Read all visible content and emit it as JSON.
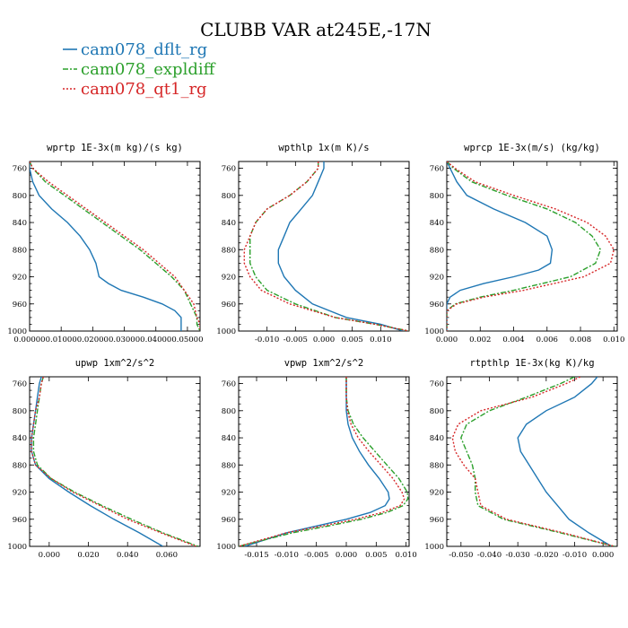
{
  "figure": {
    "title": "CLUBB VAR at245E,-17N"
  },
  "legend": [
    {
      "name": "cam078_dflt_rg",
      "color": "#1f77b4",
      "dash": ""
    },
    {
      "name": "cam078_expldiff",
      "color": "#2ca02c",
      "dash": "6,2,2,2"
    },
    {
      "name": "cam078_qt1_rg",
      "color": "#d62728",
      "dash": "2,2"
    }
  ],
  "chart_data": [
    {
      "type": "line",
      "title": "wprtp  1E-3x(m kg)/(s kg)",
      "xlim": [
        0.0,
        0.054
      ],
      "ylim": [
        750,
        1000
      ],
      "xticks": [
        0.0,
        0.01,
        0.02,
        0.03,
        0.04,
        0.05
      ],
      "xtick_labels": [
        "0.00000",
        "0.01000",
        "0.02000",
        "0.03000",
        "0.04000",
        "0.05000"
      ],
      "yticks": [
        760,
        800,
        840,
        880,
        920,
        960,
        1000
      ],
      "series": [
        {
          "y": [
            750,
            760,
            780,
            800,
            820,
            840,
            860,
            880,
            900,
            920,
            930,
            940,
            950,
            960,
            970,
            980,
            990,
            1000
          ],
          "x": [
            0.0,
            0.0,
            0.001,
            0.003,
            0.007,
            0.012,
            0.016,
            0.019,
            0.021,
            0.022,
            0.025,
            0.029,
            0.036,
            0.042,
            0.046,
            0.048,
            0.048,
            0.048
          ]
        },
        {
          "y": [
            750,
            760,
            780,
            800,
            820,
            840,
            860,
            880,
            900,
            920,
            940,
            960,
            980,
            990,
            1000
          ],
          "x": [
            0.0,
            0.001,
            0.005,
            0.011,
            0.017,
            0.023,
            0.029,
            0.035,
            0.04,
            0.045,
            0.049,
            0.051,
            0.053,
            0.053,
            0.054
          ]
        },
        {
          "y": [
            750,
            760,
            780,
            800,
            820,
            840,
            860,
            880,
            900,
            920,
            940,
            960,
            980,
            990,
            1000
          ],
          "x": [
            0.0,
            0.001,
            0.006,
            0.012,
            0.018,
            0.024,
            0.03,
            0.036,
            0.041,
            0.046,
            0.049,
            0.052,
            0.053,
            0.054,
            0.054
          ]
        }
      ]
    },
    {
      "type": "line",
      "title": "wpthlp  1x(m K)/s",
      "xlim": [
        -0.015,
        0.015
      ],
      "ylim": [
        750,
        1000
      ],
      "xticks": [
        -0.01,
        -0.005,
        0.0,
        0.005,
        0.01
      ],
      "xtick_labels": [
        "-0.010",
        "-0.005",
        "0.000",
        "0.005",
        "0.010"
      ],
      "yticks": [
        760,
        800,
        840,
        880,
        920,
        960,
        1000
      ],
      "series": [
        {
          "y": [
            750,
            760,
            780,
            800,
            820,
            840,
            860,
            880,
            900,
            920,
            940,
            960,
            980,
            990,
            1000
          ],
          "x": [
            0.0,
            0.0,
            -0.001,
            -0.002,
            -0.004,
            -0.006,
            -0.007,
            -0.008,
            -0.008,
            -0.007,
            -0.005,
            -0.002,
            0.004,
            0.01,
            0.014
          ]
        },
        {
          "y": [
            750,
            760,
            780,
            800,
            820,
            840,
            860,
            880,
            900,
            920,
            940,
            960,
            980,
            990,
            1000
          ],
          "x": [
            -0.001,
            -0.001,
            -0.003,
            -0.006,
            -0.01,
            -0.012,
            -0.013,
            -0.013,
            -0.013,
            -0.012,
            -0.01,
            -0.005,
            0.002,
            0.009,
            0.015
          ]
        },
        {
          "y": [
            750,
            760,
            780,
            800,
            820,
            840,
            860,
            880,
            900,
            920,
            940,
            960,
            980,
            990,
            1000
          ],
          "x": [
            -0.001,
            -0.001,
            -0.003,
            -0.006,
            -0.01,
            -0.012,
            -0.013,
            -0.014,
            -0.014,
            -0.013,
            -0.011,
            -0.006,
            0.002,
            0.009,
            0.015
          ]
        }
      ]
    },
    {
      "type": "line",
      "title": "wprcp  1E-3x(m/s) (kg/kg)",
      "xlim": [
        0.0,
        0.0102
      ],
      "ylim": [
        750,
        1000
      ],
      "xticks": [
        0.0,
        0.002,
        0.004,
        0.006,
        0.008,
        0.01
      ],
      "xtick_labels": [
        "0.000",
        "0.002",
        "0.004",
        "0.006",
        "0.008",
        "0.010"
      ],
      "yticks": [
        760,
        800,
        840,
        880,
        920,
        960,
        1000
      ],
      "series": [
        {
          "y": [
            750,
            760,
            780,
            800,
            820,
            840,
            860,
            880,
            900,
            910,
            920,
            930,
            940,
            950,
            960,
            1000
          ],
          "x": [
            0.0,
            0.0002,
            0.0006,
            0.0012,
            0.0028,
            0.0047,
            0.006,
            0.0063,
            0.0062,
            0.0055,
            0.004,
            0.0022,
            0.0008,
            0.0002,
            0.0,
            0.0
          ]
        },
        {
          "y": [
            750,
            760,
            780,
            800,
            820,
            840,
            860,
            880,
            900,
            920,
            940,
            950,
            960,
            970,
            1000
          ],
          "x": [
            0.0,
            0.0004,
            0.0015,
            0.0036,
            0.006,
            0.0077,
            0.0087,
            0.0092,
            0.0089,
            0.0074,
            0.004,
            0.002,
            0.0005,
            0.0,
            0.0
          ]
        },
        {
          "y": [
            750,
            760,
            780,
            800,
            820,
            840,
            860,
            880,
            900,
            920,
            940,
            950,
            960,
            970,
            1000
          ],
          "x": [
            0.0,
            0.0005,
            0.0017,
            0.004,
            0.0065,
            0.0084,
            0.0095,
            0.01,
            0.0098,
            0.0082,
            0.0046,
            0.0022,
            0.0006,
            0.0,
            0.0
          ]
        }
      ]
    },
    {
      "type": "line",
      "title": "upwp  1xm^2/s^2",
      "xlim": [
        -0.01,
        0.077
      ],
      "ylim": [
        750,
        1000
      ],
      "xticks": [
        0.0,
        0.02,
        0.04,
        0.06
      ],
      "xtick_labels": [
        "0.000",
        "0.020",
        "0.040",
        "0.060"
      ],
      "yticks": [
        760,
        800,
        840,
        880,
        920,
        960,
        1000
      ],
      "series": [
        {
          "y": [
            750,
            760,
            780,
            800,
            820,
            840,
            860,
            880,
            900,
            920,
            940,
            960,
            980,
            1000
          ],
          "x": [
            -0.004,
            -0.005,
            -0.006,
            -0.007,
            -0.008,
            -0.009,
            -0.009,
            -0.007,
            0.0,
            0.01,
            0.021,
            0.033,
            0.046,
            0.058
          ]
        },
        {
          "y": [
            750,
            760,
            780,
            800,
            820,
            840,
            860,
            880,
            900,
            920,
            940,
            960,
            980,
            1000
          ],
          "x": [
            -0.003,
            -0.004,
            -0.005,
            -0.006,
            -0.007,
            -0.008,
            -0.008,
            -0.006,
            0.001,
            0.013,
            0.027,
            0.042,
            0.058,
            0.076
          ]
        },
        {
          "y": [
            750,
            760,
            780,
            800,
            820,
            840,
            860,
            880,
            900,
            920,
            940,
            960,
            980,
            1000
          ],
          "x": [
            -0.003,
            -0.004,
            -0.005,
            -0.007,
            -0.008,
            -0.009,
            -0.009,
            -0.007,
            0.001,
            0.012,
            0.026,
            0.04,
            0.057,
            0.075
          ]
        }
      ]
    },
    {
      "type": "line",
      "title": "vpwp  1xm^2/s^2",
      "xlim": [
        -0.018,
        0.0105
      ],
      "ylim": [
        750,
        1000
      ],
      "xticks": [
        -0.015,
        -0.01,
        -0.005,
        0.0,
        0.005,
        0.01
      ],
      "xtick_labels": [
        "-0.015",
        "-0.010",
        "-0.005",
        "0.000",
        "0.005",
        "0.010"
      ],
      "yticks": [
        760,
        800,
        840,
        880,
        920,
        960,
        1000
      ],
      "series": [
        {
          "y": [
            750,
            760,
            780,
            800,
            820,
            840,
            860,
            880,
            900,
            920,
            930,
            940,
            950,
            960,
            970,
            980,
            1000
          ],
          "x": [
            0.0,
            0.0,
            0.0,
            0.0,
            0.0003,
            0.001,
            0.0022,
            0.0037,
            0.0055,
            0.007,
            0.0072,
            0.0065,
            0.004,
            0.0,
            -0.005,
            -0.01,
            -0.017
          ]
        },
        {
          "y": [
            750,
            760,
            780,
            800,
            820,
            840,
            860,
            880,
            900,
            920,
            930,
            940,
            950,
            960,
            970,
            980,
            1000
          ],
          "x": [
            0.0,
            0.0,
            0.0,
            0.0003,
            0.0012,
            0.0028,
            0.0048,
            0.0068,
            0.0088,
            0.0102,
            0.0103,
            0.0095,
            0.0068,
            0.0025,
            -0.003,
            -0.009,
            -0.018
          ]
        },
        {
          "y": [
            750,
            760,
            780,
            800,
            820,
            840,
            860,
            880,
            900,
            920,
            930,
            940,
            950,
            960,
            970,
            980,
            1000
          ],
          "x": [
            0.0,
            0.0,
            0.0,
            0.0002,
            0.0008,
            0.002,
            0.0038,
            0.0058,
            0.0078,
            0.0093,
            0.0097,
            0.009,
            0.006,
            0.0015,
            -0.004,
            -0.01,
            -0.018
          ]
        }
      ]
    },
    {
      "type": "line",
      "title": "rtpthlp  1E-3x(kg K)/kg",
      "xlim": [
        -0.055,
        0.005
      ],
      "ylim": [
        750,
        1000
      ],
      "xticks": [
        -0.05,
        -0.04,
        -0.03,
        -0.02,
        -0.01,
        0.0
      ],
      "xtick_labels": [
        "-0.050",
        "-0.040",
        "-0.030",
        "-0.020",
        "-0.010",
        "0.000"
      ],
      "yticks": [
        760,
        800,
        840,
        880,
        920,
        960,
        1000
      ],
      "series": [
        {
          "y": [
            750,
            760,
            780,
            800,
            820,
            840,
            860,
            880,
            900,
            920,
            940,
            960,
            980,
            1000
          ],
          "x": [
            -0.002,
            -0.004,
            -0.01,
            -0.02,
            -0.027,
            -0.03,
            -0.029,
            -0.026,
            -0.023,
            -0.02,
            -0.016,
            -0.012,
            -0.005,
            0.003
          ]
        },
        {
          "y": [
            750,
            760,
            780,
            800,
            820,
            840,
            860,
            880,
            900,
            920,
            940,
            960,
            980,
            1000
          ],
          "x": [
            -0.01,
            -0.015,
            -0.027,
            -0.04,
            -0.048,
            -0.05,
            -0.048,
            -0.046,
            -0.045,
            -0.045,
            -0.044,
            -0.035,
            -0.015,
            0.004
          ]
        },
        {
          "y": [
            750,
            760,
            780,
            800,
            820,
            840,
            860,
            880,
            900,
            920,
            940,
            960,
            980,
            1000
          ],
          "x": [
            -0.008,
            -0.013,
            -0.025,
            -0.043,
            -0.051,
            -0.053,
            -0.052,
            -0.049,
            -0.045,
            -0.044,
            -0.043,
            -0.034,
            -0.014,
            0.004
          ]
        }
      ]
    }
  ]
}
